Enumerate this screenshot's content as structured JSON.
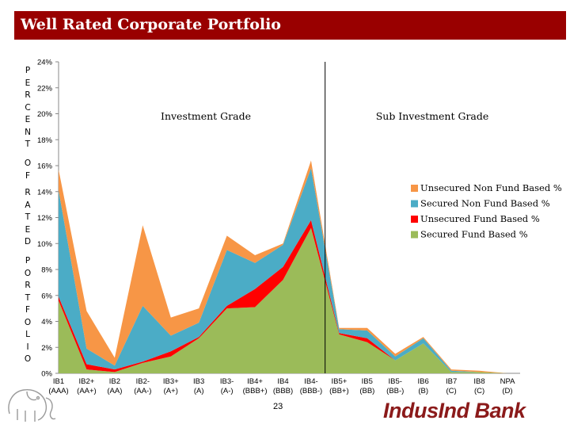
{
  "slide": {
    "title": "Well Rated Corporate Portfolio",
    "side_label_top": [
      "P",
      "E",
      "R",
      "C",
      "E",
      "N",
      "T"
    ],
    "side_label_mid": [
      "O",
      "F"
    ],
    "side_label_mid2": [
      "R",
      "A",
      "T",
      "E",
      "D"
    ],
    "side_label_bottom": [
      "P",
      "O",
      "R",
      "T",
      "F",
      "O",
      "L",
      "I",
      "O"
    ],
    "page_number": "23",
    "brand": "IndusInd Bank",
    "colors": {
      "title_bar": "#990000",
      "brand": "#8b1a1a"
    }
  },
  "chart_data": {
    "type": "area",
    "stacked": true,
    "title": "Well Rated Corporate Portfolio",
    "ylabel": "PERCENT OF RATED PORTFOLIO",
    "ylim": [
      0,
      24
    ],
    "yticks": [
      0,
      2,
      4,
      6,
      8,
      10,
      12,
      14,
      16,
      18,
      20,
      22,
      24
    ],
    "ytick_labels": [
      "0%",
      "2%",
      "4%",
      "6%",
      "8%",
      "10%",
      "12%",
      "14%",
      "16%",
      "18%",
      "20%",
      "22%",
      "24%"
    ],
    "categories": [
      [
        "IB1",
        "(AAA)"
      ],
      [
        "IB2+",
        "(AA+)"
      ],
      [
        "IB2",
        "(AA)"
      ],
      [
        "IB2-",
        "(AA-)"
      ],
      [
        "IB3+",
        "(A+)"
      ],
      [
        "IB3",
        "(A)"
      ],
      [
        "IB3-",
        "(A-)"
      ],
      [
        "IB4+",
        "(BBB+)"
      ],
      [
        "IB4",
        "(BBB)"
      ],
      [
        "IB4-",
        "(BBB-)"
      ],
      [
        "IB5+",
        "(BB+)"
      ],
      [
        "IB5",
        "(BB)"
      ],
      [
        "IB5-",
        "(BB-)"
      ],
      [
        "IB6",
        "(B)"
      ],
      [
        "IB7",
        "(C)"
      ],
      [
        "IB8",
        "(C)"
      ],
      [
        "NPA",
        "(D)"
      ]
    ],
    "annotations": [
      {
        "text": "Investment Grade"
      },
      {
        "text": "Sub Investment Grade"
      }
    ],
    "divider_after_category": 9.5,
    "legend_position": "right",
    "series": [
      {
        "name": "Secured Fund Based %",
        "color": "#9bbb59",
        "values": [
          5.6,
          0.3,
          0.1,
          0.8,
          1.3,
          2.7,
          5.0,
          5.1,
          7.2,
          11.2,
          3.0,
          2.4,
          1.0,
          2.3,
          0.1,
          0.1,
          0.0
        ]
      },
      {
        "name": "Unsecured Fund Based %",
        "color": "#ff0000",
        "values": [
          0.3,
          0.4,
          0.2,
          0.1,
          0.4,
          0.1,
          0.2,
          1.4,
          1.0,
          0.6,
          0.1,
          0.3,
          0.0,
          0.0,
          0.0,
          0.0,
          0.0
        ]
      },
      {
        "name": "Secured Non Fund Based %",
        "color": "#4bacc6",
        "values": [
          8.2,
          1.2,
          0.3,
          4.3,
          1.2,
          1.1,
          4.3,
          2.0,
          1.7,
          4.0,
          0.3,
          0.6,
          0.3,
          0.4,
          0.1,
          0.0,
          0.0
        ]
      },
      {
        "name": "Unsecured Non Fund Based %",
        "color": "#f79646",
        "values": [
          1.6,
          2.9,
          0.6,
          6.2,
          1.4,
          1.1,
          1.1,
          0.6,
          0.1,
          0.6,
          0.1,
          0.2,
          0.2,
          0.1,
          0.1,
          0.1,
          0.0
        ]
      }
    ]
  }
}
